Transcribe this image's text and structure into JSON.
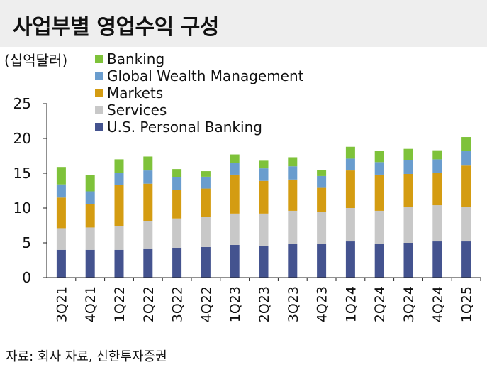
{
  "header": {
    "title": "사업부별 영업수익 구성"
  },
  "footer": {
    "source": "자료: 회사 자료, 신한투자증권"
  },
  "colors": {
    "U.S. Personal Banking": "#44538f",
    "Services": "#c8c8c8",
    "Markets": "#d49c12",
    "Global Wealth Management": "#6a9dce",
    "Banking": "#7ec23a"
  },
  "chart_data": {
    "type": "bar",
    "stacked": true,
    "unit_label": "(십억달러)",
    "categories": [
      "3Q21",
      "4Q21",
      "1Q22",
      "2Q22",
      "3Q22",
      "4Q22",
      "1Q23",
      "2Q23",
      "3Q23",
      "4Q23",
      "1Q24",
      "2Q24",
      "3Q24",
      "4Q24",
      "1Q25"
    ],
    "series": [
      {
        "name": "U.S. Personal Banking",
        "values": [
          4.0,
          4.0,
          4.0,
          4.1,
          4.3,
          4.4,
          4.7,
          4.6,
          4.9,
          4.9,
          5.2,
          4.9,
          5.0,
          5.2,
          5.2
        ]
      },
      {
        "name": "Services",
        "values": [
          3.1,
          3.2,
          3.4,
          4.0,
          4.2,
          4.3,
          4.5,
          4.6,
          4.7,
          4.5,
          4.8,
          4.7,
          5.1,
          5.2,
          4.9
        ]
      },
      {
        "name": "Markets",
        "values": [
          4.4,
          3.4,
          5.9,
          5.4,
          4.1,
          4.1,
          5.6,
          4.7,
          4.5,
          3.5,
          5.4,
          5.2,
          4.8,
          4.6,
          6.0
        ]
      },
      {
        "name": "Global Wealth Management",
        "values": [
          1.9,
          1.8,
          1.8,
          1.9,
          1.8,
          1.7,
          1.7,
          1.8,
          1.9,
          1.7,
          1.7,
          1.8,
          2.0,
          2.0,
          2.1
        ]
      },
      {
        "name": "Banking",
        "values": [
          2.5,
          2.3,
          1.9,
          2.0,
          1.2,
          0.8,
          1.2,
          1.1,
          1.3,
          0.9,
          1.7,
          1.6,
          1.6,
          1.3,
          2.0
        ]
      }
    ],
    "legend_order": [
      "Banking",
      "Global Wealth Management",
      "Markets",
      "Services",
      "U.S. Personal Banking"
    ],
    "ylim": [
      0,
      25
    ],
    "yticks": [
      0,
      5,
      10,
      15,
      20,
      25
    ],
    "xlabel": "",
    "ylabel": "",
    "legend_position": "top-left"
  }
}
